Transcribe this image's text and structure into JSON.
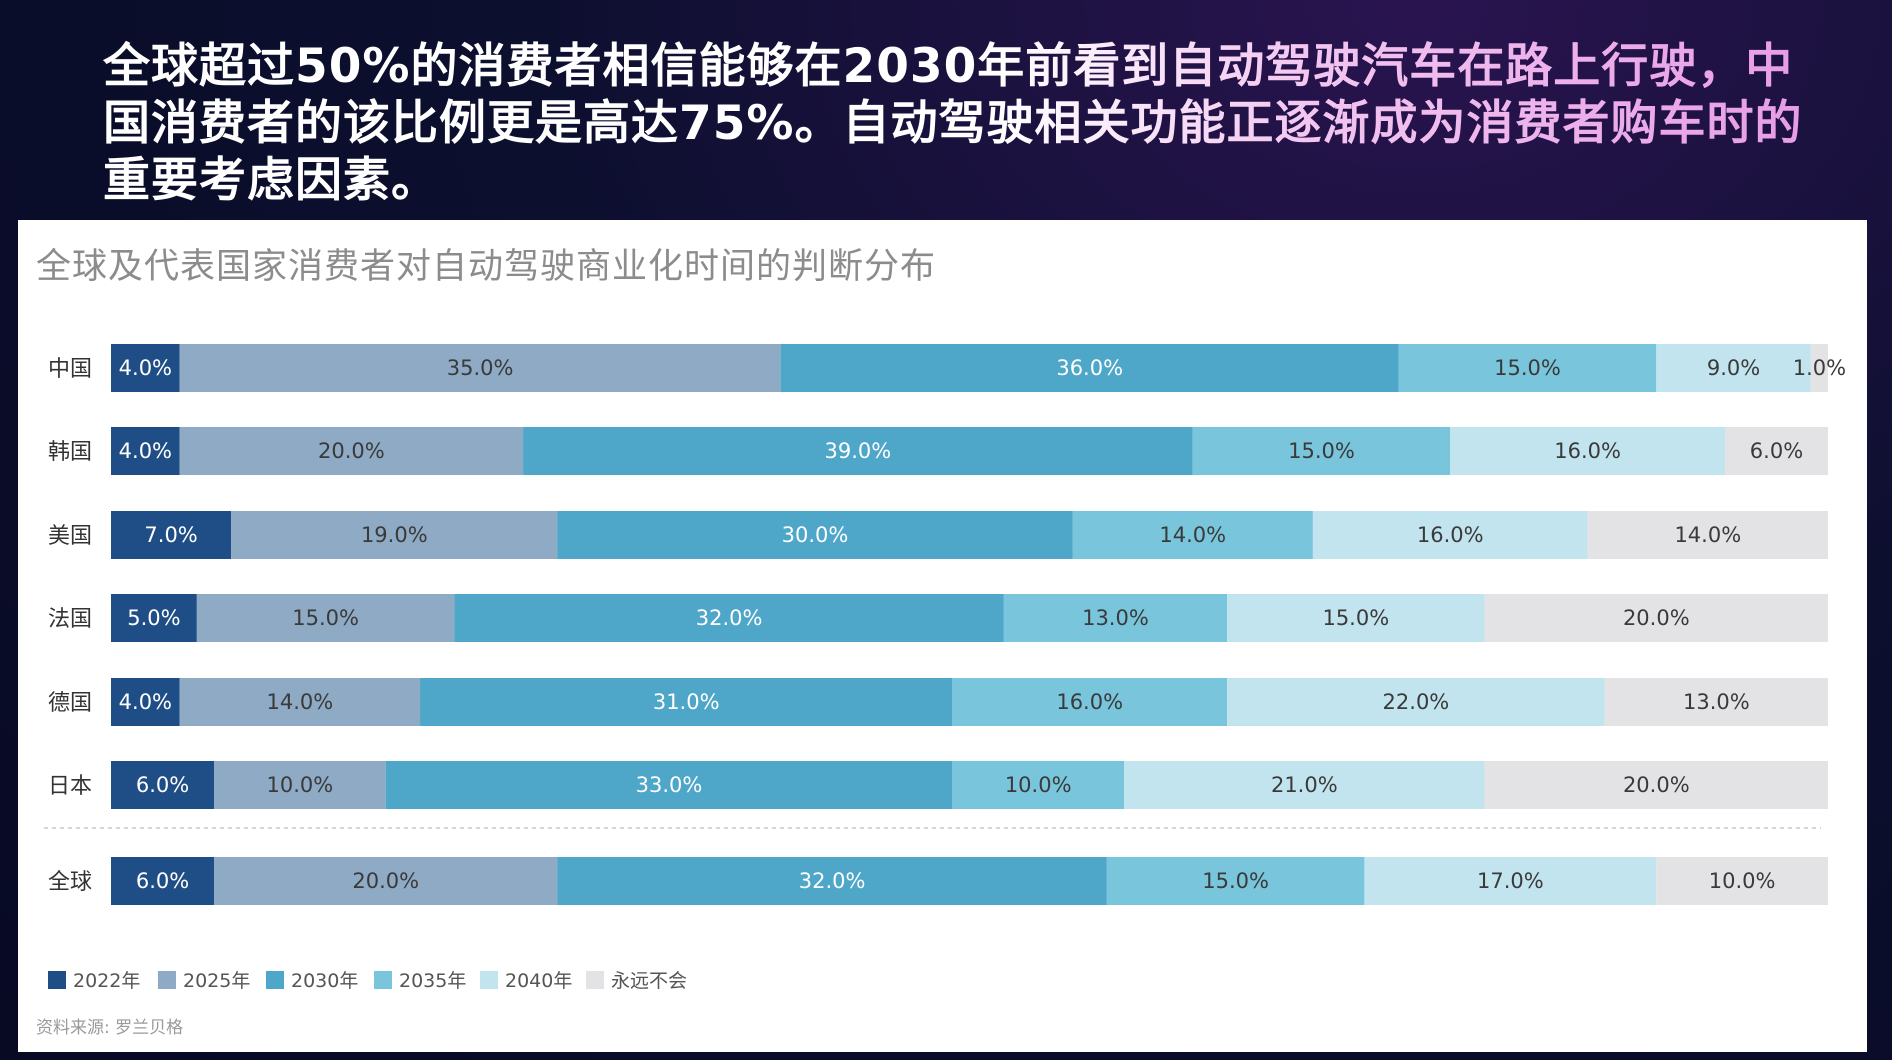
{
  "headline": "全球超过50%的消费者相信能够在2030年前看到自动驾驶汽车在路上行驶，中国消费者的该比例更是高达75%。自动驾驶相关功能正逐渐成为消费者购车时的重要考虑因素。",
  "source": "资料来源:   罗兰贝格",
  "chart_data": {
    "type": "bar",
    "orientation": "horizontal-stacked-100",
    "title": "全球及代表国家消费者对自动驾驶商业化时间的判断分布",
    "categories": [
      "中国",
      "韩国",
      "美国",
      "法国",
      "德国",
      "日本",
      "全球"
    ],
    "series": [
      {
        "name": "2022年",
        "color": "#1f4e87",
        "values": [
          4.0,
          4.0,
          7.0,
          5.0,
          4.0,
          6.0,
          6.0
        ]
      },
      {
        "name": "2025年",
        "color": "#8eaac4",
        "values": [
          35.0,
          20.0,
          19.0,
          15.0,
          14.0,
          10.0,
          20.0
        ]
      },
      {
        "name": "2030年",
        "color": "#4ea6c9",
        "values": [
          36.0,
          39.0,
          30.0,
          32.0,
          31.0,
          33.0,
          32.0
        ]
      },
      {
        "name": "2035年",
        "color": "#79c5dc",
        "values": [
          15.0,
          15.0,
          14.0,
          13.0,
          16.0,
          10.0,
          15.0
        ]
      },
      {
        "name": "2040年",
        "color": "#c2e4ef",
        "values": [
          9.0,
          16.0,
          16.0,
          15.0,
          22.0,
          21.0,
          17.0
        ]
      },
      {
        "name": "永远不会",
        "color": "#e3e3e5",
        "values": [
          1.0,
          6.0,
          14.0,
          20.0,
          13.0,
          20.0,
          10.0
        ]
      }
    ],
    "legend_position": "bottom-left",
    "label_suffix": "%"
  }
}
